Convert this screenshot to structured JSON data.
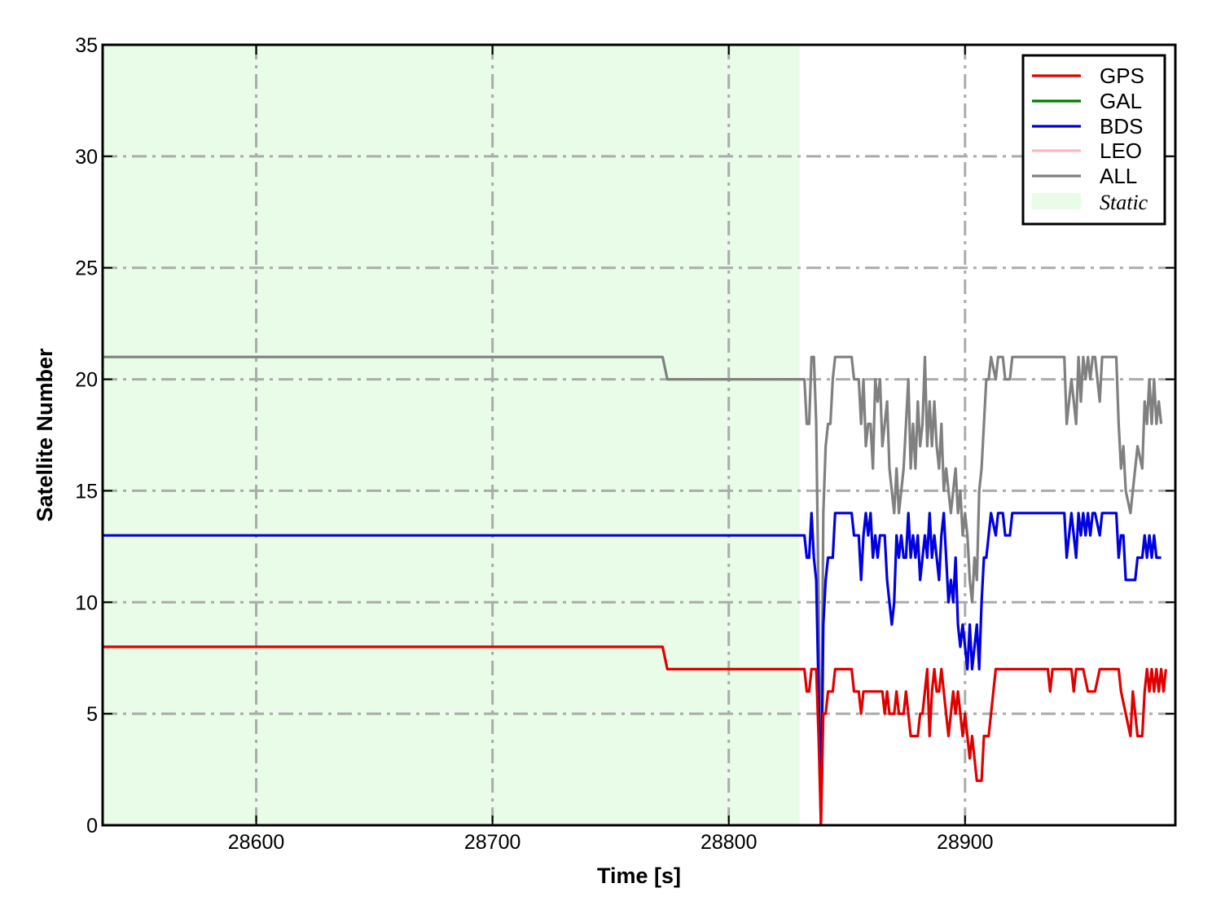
{
  "chart_data": {
    "type": "line",
    "title": "",
    "xlabel": "Time [s]",
    "ylabel": "Satellite Number",
    "xlim": [
      28535,
      28989
    ],
    "ylim": [
      0,
      35
    ],
    "xticks": [
      28600,
      28700,
      28800,
      28900
    ],
    "yticks": [
      0,
      5,
      10,
      15,
      20,
      25,
      30,
      35
    ],
    "xtick_labels": [
      "28600",
      "28700",
      "28800",
      "28900"
    ],
    "ytick_labels": [
      "0",
      "5",
      "10",
      "15",
      "20",
      "25",
      "30",
      "35"
    ],
    "grid": true,
    "grid_style": "dash-dot",
    "legend_position": "top-right",
    "static_region": {
      "x_start": 28535,
      "x_end": 28830,
      "label": "Static",
      "color": "#e8fce8"
    },
    "series": [
      {
        "name": "GPS",
        "color": "#e00000",
        "points": [
          [
            28535,
            8
          ],
          [
            28772,
            8
          ],
          [
            28774,
            7
          ],
          [
            28832,
            7
          ],
          [
            28833,
            6
          ],
          [
            28834,
            6
          ],
          [
            28835,
            7
          ],
          [
            28837,
            7
          ],
          [
            28838,
            4
          ],
          [
            28839,
            0
          ],
          [
            28840,
            5
          ],
          [
            28841,
            5
          ],
          [
            28842,
            6
          ],
          [
            28844,
            6
          ],
          [
            28845,
            7
          ],
          [
            28852,
            7
          ],
          [
            28853,
            6
          ],
          [
            28855,
            6
          ],
          [
            28856,
            5
          ],
          [
            28857,
            6
          ],
          [
            28865,
            6
          ],
          [
            28866,
            5
          ],
          [
            28867,
            6
          ],
          [
            28868,
            5
          ],
          [
            28870,
            5
          ],
          [
            28871,
            6
          ],
          [
            28872,
            5
          ],
          [
            28874,
            5
          ],
          [
            28875,
            6
          ],
          [
            28876,
            5
          ],
          [
            28877,
            4
          ],
          [
            28880,
            4
          ],
          [
            28881,
            5
          ],
          [
            28882,
            5
          ],
          [
            28883,
            6
          ],
          [
            28884,
            7
          ],
          [
            28885,
            4
          ],
          [
            28886,
            6
          ],
          [
            28887,
            7
          ],
          [
            28888,
            6
          ],
          [
            28889,
            6
          ],
          [
            28890,
            7
          ],
          [
            28891,
            6
          ],
          [
            28893,
            4
          ],
          [
            28894,
            5
          ],
          [
            28895,
            6
          ],
          [
            28896,
            5
          ],
          [
            28897,
            6
          ],
          [
            28898,
            5
          ],
          [
            28899,
            4
          ],
          [
            28900,
            5
          ],
          [
            28901,
            4
          ],
          [
            28902,
            3
          ],
          [
            28903,
            4
          ],
          [
            28904,
            3
          ],
          [
            28905,
            2
          ],
          [
            28907,
            2
          ],
          [
            28908,
            4
          ],
          [
            28910,
            4
          ],
          [
            28913,
            7
          ],
          [
            28935,
            7
          ],
          [
            28936,
            6
          ],
          [
            28937,
            7
          ],
          [
            28945,
            7
          ],
          [
            28946,
            6
          ],
          [
            28947,
            7
          ],
          [
            28950,
            7
          ],
          [
            28952,
            6
          ],
          [
            28955,
            6
          ],
          [
            28957,
            7
          ],
          [
            28965,
            7
          ],
          [
            28966,
            6
          ],
          [
            28968,
            5
          ],
          [
            28970,
            4
          ],
          [
            28971,
            6
          ],
          [
            28972,
            5
          ],
          [
            28973,
            4
          ],
          [
            28975,
            4
          ],
          [
            28976,
            6
          ],
          [
            28977,
            7
          ],
          [
            28978,
            6
          ],
          [
            28979,
            7
          ],
          [
            28980,
            6
          ],
          [
            28981,
            7
          ],
          [
            28982,
            6
          ],
          [
            28983,
            7
          ],
          [
            28984,
            6
          ],
          [
            28985,
            7
          ]
        ]
      },
      {
        "name": "GAL",
        "color": "#007a00",
        "points": []
      },
      {
        "name": "BDS",
        "color": "#0000e0",
        "points": [
          [
            28535,
            13
          ],
          [
            28832,
            13
          ],
          [
            28833,
            12
          ],
          [
            28834,
            12
          ],
          [
            28835,
            14
          ],
          [
            28836,
            12
          ],
          [
            28837,
            11
          ],
          [
            28838,
            6
          ],
          [
            28839,
            0
          ],
          [
            28840,
            9
          ],
          [
            28841,
            11
          ],
          [
            28842,
            12
          ],
          [
            28844,
            12
          ],
          [
            28845,
            14
          ],
          [
            28849,
            14
          ],
          [
            28852,
            14
          ],
          [
            28853,
            13
          ],
          [
            28855,
            13
          ],
          [
            28856,
            11
          ],
          [
            28857,
            13
          ],
          [
            28858,
            14
          ],
          [
            28859,
            13
          ],
          [
            28860,
            14
          ],
          [
            28861,
            12
          ],
          [
            28862,
            13
          ],
          [
            28863,
            12
          ],
          [
            28864,
            13
          ],
          [
            28866,
            13
          ],
          [
            28867,
            11
          ],
          [
            28868,
            10
          ],
          [
            28869,
            9
          ],
          [
            28870,
            10
          ],
          [
            28871,
            13
          ],
          [
            28872,
            12
          ],
          [
            28873,
            13
          ],
          [
            28874,
            12
          ],
          [
            28875,
            12
          ],
          [
            28876,
            14
          ],
          [
            28877,
            12
          ],
          [
            28878,
            13
          ],
          [
            28879,
            12
          ],
          [
            28880,
            13
          ],
          [
            28881,
            11
          ],
          [
            28882,
            12
          ],
          [
            28883,
            13
          ],
          [
            28884,
            12
          ],
          [
            28885,
            14
          ],
          [
            28886,
            12
          ],
          [
            28887,
            13
          ],
          [
            28888,
            12
          ],
          [
            28889,
            11
          ],
          [
            28890,
            13
          ],
          [
            28891,
            14
          ],
          [
            28892,
            12
          ],
          [
            28893,
            10
          ],
          [
            28894,
            11
          ],
          [
            28895,
            10
          ],
          [
            28896,
            12
          ],
          [
            28897,
            9
          ],
          [
            28898,
            8
          ],
          [
            28899,
            9
          ],
          [
            28900,
            8
          ],
          [
            28901,
            7
          ],
          [
            28902,
            9
          ],
          [
            28903,
            7
          ],
          [
            28905,
            9
          ],
          [
            28906,
            7
          ],
          [
            28907,
            10
          ],
          [
            28908,
            12
          ],
          [
            28909,
            12
          ],
          [
            28910,
            13
          ],
          [
            28911,
            14
          ],
          [
            28913,
            13
          ],
          [
            28914,
            14
          ],
          [
            28916,
            14
          ],
          [
            28917,
            13
          ],
          [
            28919,
            13
          ],
          [
            28920,
            14
          ],
          [
            28922,
            14
          ],
          [
            28942,
            14
          ],
          [
            28943,
            12
          ],
          [
            28944,
            13
          ],
          [
            28945,
            14
          ],
          [
            28946,
            13
          ],
          [
            28947,
            12
          ],
          [
            28948,
            14
          ],
          [
            28949,
            13
          ],
          [
            28950,
            14
          ],
          [
            28951,
            13
          ],
          [
            28952,
            14
          ],
          [
            28953,
            13
          ],
          [
            28954,
            14
          ],
          [
            28955,
            14
          ],
          [
            28957,
            13
          ],
          [
            28958,
            14
          ],
          [
            28964,
            14
          ],
          [
            28965,
            12
          ],
          [
            28966,
            13
          ],
          [
            28967,
            13
          ],
          [
            28968,
            11
          ],
          [
            28970,
            11
          ],
          [
            28972,
            11
          ],
          [
            28973,
            12
          ],
          [
            28975,
            12
          ],
          [
            28976,
            13
          ],
          [
            28977,
            12
          ],
          [
            28978,
            13
          ],
          [
            28979,
            12
          ],
          [
            28980,
            13
          ],
          [
            28981,
            12
          ],
          [
            28982,
            12
          ],
          [
            28983,
            12
          ]
        ]
      },
      {
        "name": "LEO",
        "color": "#ffb6c1",
        "points": []
      },
      {
        "name": "ALL",
        "color": "#808080",
        "points": [
          [
            28535,
            21
          ],
          [
            28772,
            21
          ],
          [
            28774,
            20
          ],
          [
            28832,
            20
          ],
          [
            28833,
            18
          ],
          [
            28834,
            18
          ],
          [
            28835,
            21
          ],
          [
            28836,
            21
          ],
          [
            28837,
            18
          ],
          [
            28838,
            10
          ],
          [
            28839,
            0
          ],
          [
            28840,
            14
          ],
          [
            28841,
            17
          ],
          [
            28842,
            18
          ],
          [
            28843,
            18
          ],
          [
            28844,
            20
          ],
          [
            28845,
            21
          ],
          [
            28852,
            21
          ],
          [
            28853,
            20
          ],
          [
            28855,
            20
          ],
          [
            28856,
            18
          ],
          [
            28857,
            20
          ],
          [
            28858,
            17
          ],
          [
            28859,
            18
          ],
          [
            28860,
            18
          ],
          [
            28861,
            16
          ],
          [
            28862,
            20
          ],
          [
            28863,
            19
          ],
          [
            28864,
            20
          ],
          [
            28865,
            17
          ],
          [
            28866,
            18
          ],
          [
            28867,
            19
          ],
          [
            28868,
            16
          ],
          [
            28869,
            15
          ],
          [
            28870,
            14
          ],
          [
            28871,
            16
          ],
          [
            28872,
            14
          ],
          [
            28873,
            15
          ],
          [
            28874,
            16
          ],
          [
            28875,
            18
          ],
          [
            28876,
            20
          ],
          [
            28877,
            16
          ],
          [
            28878,
            18
          ],
          [
            28879,
            16
          ],
          [
            28880,
            19
          ],
          [
            28881,
            17
          ],
          [
            28882,
            18
          ],
          [
            28883,
            21
          ],
          [
            28884,
            17
          ],
          [
            28885,
            19
          ],
          [
            28886,
            17
          ],
          [
            28887,
            19
          ],
          [
            28888,
            17
          ],
          [
            28889,
            16
          ],
          [
            28890,
            18
          ],
          [
            28891,
            15
          ],
          [
            28892,
            16
          ],
          [
            28893,
            15
          ],
          [
            28894,
            14
          ],
          [
            28895,
            15
          ],
          [
            28896,
            16
          ],
          [
            28897,
            14
          ],
          [
            28898,
            15
          ],
          [
            28899,
            13
          ],
          [
            28900,
            14
          ],
          [
            28901,
            13
          ],
          [
            28902,
            11
          ],
          [
            28903,
            10
          ],
          [
            28904,
            12
          ],
          [
            28905,
            11
          ],
          [
            28906,
            15
          ],
          [
            28907,
            16
          ],
          [
            28908,
            18
          ],
          [
            28909,
            20
          ],
          [
            28910,
            20
          ],
          [
            28911,
            21
          ],
          [
            28913,
            20
          ],
          [
            28914,
            21
          ],
          [
            28916,
            21
          ],
          [
            28917,
            20
          ],
          [
            28919,
            20
          ],
          [
            28920,
            21
          ],
          [
            28922,
            21
          ],
          [
            28942,
            21
          ],
          [
            28943,
            18
          ],
          [
            28944,
            19
          ],
          [
            28945,
            20
          ],
          [
            28946,
            19
          ],
          [
            28947,
            18
          ],
          [
            28948,
            21
          ],
          [
            28949,
            19
          ],
          [
            28950,
            21
          ],
          [
            28951,
            20
          ],
          [
            28952,
            21
          ],
          [
            28953,
            20
          ],
          [
            28954,
            21
          ],
          [
            28955,
            21
          ],
          [
            28957,
            19
          ],
          [
            28958,
            21
          ],
          [
            28964,
            21
          ],
          [
            28965,
            18
          ],
          [
            28966,
            16
          ],
          [
            28967,
            17
          ],
          [
            28968,
            15
          ],
          [
            28970,
            14
          ],
          [
            28972,
            16
          ],
          [
            28973,
            17
          ],
          [
            28975,
            16
          ],
          [
            28976,
            19
          ],
          [
            28977,
            18
          ],
          [
            28978,
            20
          ],
          [
            28979,
            18
          ],
          [
            28980,
            20
          ],
          [
            28981,
            18
          ],
          [
            28982,
            19
          ],
          [
            28983,
            18
          ]
        ]
      }
    ]
  }
}
